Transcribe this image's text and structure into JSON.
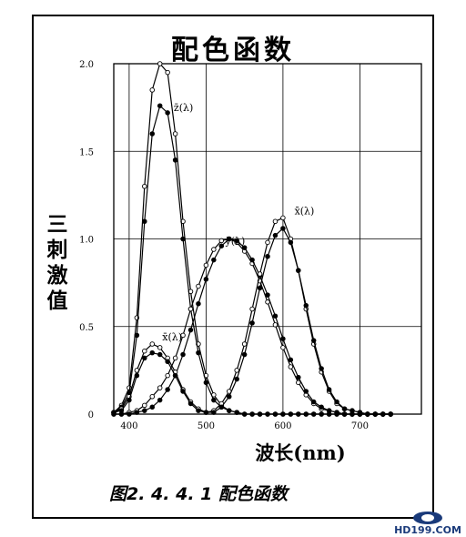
{
  "chart_data": {
    "type": "line",
    "title": "配色函数",
    "ylabel": "三刺激值",
    "xlabel": "波长(nm)",
    "caption": "图2. 4. 4. 1  配色函数",
    "xlim": [
      380,
      780
    ],
    "ylim": [
      0,
      2.0
    ],
    "x_ticks": [
      400,
      500,
      600,
      700
    ],
    "y_ticks": [
      0,
      0.5,
      1.0,
      1.5,
      2.0
    ],
    "y_tick_labels": [
      "0",
      "0.5",
      "1.0",
      "1.5",
      "2.0"
    ],
    "grid": true,
    "x": [
      380,
      390,
      400,
      410,
      420,
      430,
      440,
      450,
      460,
      470,
      480,
      490,
      500,
      510,
      520,
      530,
      540,
      550,
      560,
      570,
      580,
      590,
      600,
      610,
      620,
      630,
      640,
      650,
      660,
      670,
      680,
      690,
      700,
      710,
      720,
      730,
      740
    ],
    "series": [
      {
        "name": "z̄(λ)",
        "marker": "open",
        "values": [
          0.01,
          0.05,
          0.15,
          0.55,
          1.3,
          1.85,
          2.0,
          1.95,
          1.6,
          1.1,
          0.7,
          0.4,
          0.22,
          0.11,
          0.05,
          0.02,
          0.01,
          0,
          0,
          0,
          0,
          0,
          0,
          0,
          0,
          0,
          0,
          0,
          0,
          0,
          0,
          0,
          0,
          0,
          0,
          0,
          0
        ]
      },
      {
        "name": "z̄(λ)",
        "marker": "filled",
        "values": [
          0.01,
          0.04,
          0.12,
          0.45,
          1.1,
          1.6,
          1.76,
          1.72,
          1.45,
          1.0,
          0.6,
          0.35,
          0.18,
          0.08,
          0.04,
          0.02,
          0.01,
          0,
          0,
          0,
          0,
          0,
          0,
          0,
          0,
          0,
          0,
          0,
          0,
          0,
          0,
          0,
          0,
          0,
          0,
          0,
          0
        ]
      },
      {
        "name": "ȳ(λ)",
        "marker": "open",
        "values": [
          0,
          0,
          0.01,
          0.02,
          0.05,
          0.1,
          0.15,
          0.22,
          0.32,
          0.45,
          0.6,
          0.73,
          0.85,
          0.94,
          0.99,
          1.0,
          0.98,
          0.93,
          0.86,
          0.76,
          0.64,
          0.51,
          0.38,
          0.27,
          0.18,
          0.11,
          0.06,
          0.03,
          0.02,
          0.01,
          0,
          0,
          0,
          0,
          0,
          0,
          0
        ]
      },
      {
        "name": "ȳ(λ)",
        "marker": "filled",
        "values": [
          0,
          0,
          0,
          0.01,
          0.02,
          0.04,
          0.08,
          0.14,
          0.22,
          0.34,
          0.48,
          0.63,
          0.77,
          0.88,
          0.96,
          1.0,
          0.99,
          0.95,
          0.88,
          0.79,
          0.68,
          0.56,
          0.43,
          0.31,
          0.21,
          0.13,
          0.07,
          0.04,
          0.02,
          0.01,
          0,
          0,
          0,
          0,
          0,
          0,
          0
        ]
      },
      {
        "name": "x̄(λ)",
        "marker": "open",
        "values": [
          0.01,
          0.03,
          0.1,
          0.25,
          0.36,
          0.4,
          0.38,
          0.32,
          0.24,
          0.14,
          0.07,
          0.03,
          0.01,
          0.02,
          0.06,
          0.13,
          0.25,
          0.4,
          0.6,
          0.8,
          0.98,
          1.1,
          1.12,
          1.0,
          0.82,
          0.6,
          0.4,
          0.24,
          0.13,
          0.06,
          0.03,
          0.02,
          0.01,
          0,
          0,
          0,
          0
        ]
      },
      {
        "name": "x̄(λ)",
        "marker": "filled",
        "values": [
          0.01,
          0.02,
          0.08,
          0.22,
          0.32,
          0.35,
          0.34,
          0.3,
          0.22,
          0.13,
          0.06,
          0.02,
          0.01,
          0.01,
          0.04,
          0.1,
          0.2,
          0.34,
          0.52,
          0.72,
          0.9,
          1.02,
          1.06,
          0.98,
          0.82,
          0.62,
          0.42,
          0.26,
          0.14,
          0.07,
          0.03,
          0.02,
          0.01,
          0,
          0,
          0,
          0
        ]
      }
    ],
    "labels": [
      {
        "text": "z̄(λ)",
        "x": 458,
        "y": 1.73
      },
      {
        "text": "ȳ(λ)",
        "x": 525,
        "y": 0.97
      },
      {
        "text": "x̄(λ)",
        "x": 615,
        "y": 1.14
      },
      {
        "text": "x̄(λ)",
        "x": 443,
        "y": 0.42
      }
    ]
  },
  "watermark": {
    "text": "HD199.COM"
  }
}
